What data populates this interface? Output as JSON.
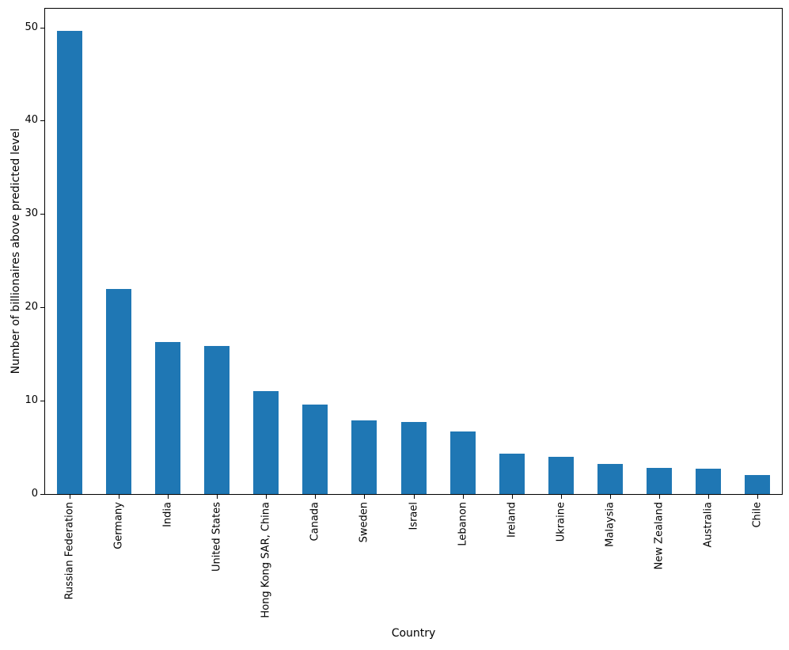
{
  "chart_data": {
    "type": "bar",
    "title": "",
    "xlabel": "Country",
    "ylabel": "Number of billionaires above predicted level",
    "categories": [
      "Russian Federation",
      "Germany",
      "India",
      "United States",
      "Hong Kong SAR, China",
      "Canada",
      "Sweden",
      "Israel",
      "Lebanon",
      "Ireland",
      "Ukraine",
      "Malaysia",
      "New Zealand",
      "Australia",
      "Chile"
    ],
    "values": [
      49.6,
      22.0,
      16.3,
      15.9,
      11.0,
      9.6,
      7.85,
      7.75,
      6.7,
      4.3,
      4.0,
      3.2,
      2.8,
      2.75,
      2.0
    ],
    "yticks": [
      0,
      10,
      20,
      30,
      40,
      50
    ],
    "ylim": [
      0,
      52
    ],
    "bar_color": "#1f77b4",
    "grid": false,
    "legend": false
  }
}
